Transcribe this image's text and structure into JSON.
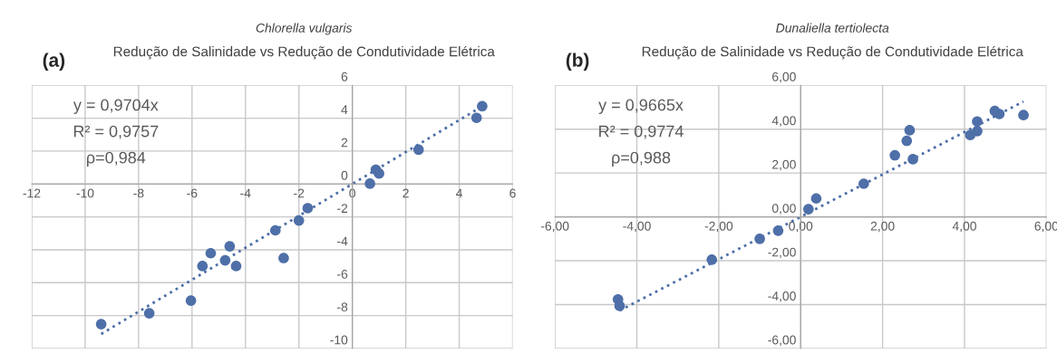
{
  "chart_data": [
    {
      "type": "scatter",
      "title": "Chlorella vulgaris",
      "subtitle": "Redução de Salinidade vs Redução de Condutividade Elétrica",
      "annotations": [
        "(a)",
        "y = 0,9704x",
        "R² = 0,9757",
        "ρ=0,984"
      ],
      "series": [
        {
          "color": "#4e6fa8",
          "marker": "circle",
          "x": [
            4.86,
            4.65,
            2.48,
            0.88,
            1.0,
            0.66,
            -1.67,
            -2.0,
            -2.88,
            -2.57,
            -4.59,
            -5.3,
            -4.76,
            -4.35,
            -5.61,
            -6.04,
            -7.6,
            -9.4
          ],
          "values": [
            4.73,
            4.02,
            2.09,
            0.87,
            0.64,
            0.02,
            -1.47,
            -2.22,
            -2.82,
            -4.5,
            -3.79,
            -4.21,
            -4.64,
            -4.99,
            -4.99,
            -7.09,
            -7.86,
            -8.52
          ]
        },
        {
          "type": "line",
          "color": "#4e6fa8",
          "line_style": "dotted",
          "marker": "none",
          "x": [
            -9.4,
            4.86
          ],
          "values": [
            -9.12,
            4.72
          ]
        }
      ],
      "xlim": [
        -12,
        6
      ],
      "ylim": [
        -10,
        6
      ],
      "xticks": [
        -12,
        -10,
        -8,
        -6,
        -4,
        -2,
        0,
        2,
        4,
        6
      ],
      "yticks": [
        -10,
        -8,
        -6,
        -4,
        -2,
        0,
        2,
        4,
        6
      ],
      "grid": true,
      "legend": false
    },
    {
      "type": "scatter",
      "title": "Dunaliella tertiolecta",
      "subtitle": "Redução de Salinidade vs Redução de Condutividade Elétrica",
      "annotations": [
        "(b)",
        "y = 0,9665x",
        "R² = 0,9774",
        "ρ=0,988"
      ],
      "series": [
        {
          "color": "#4e6fa8",
          "marker": "circle",
          "x": [
            5.44,
            4.85,
            4.74,
            4.31,
            4.31,
            4.14,
            2.66,
            2.59,
            2.3,
            2.74,
            1.54,
            0.38,
            0.19,
            -0.55,
            -1.0,
            -2.17,
            -4.46,
            -4.42
          ],
          "values": [
            4.64,
            4.69,
            4.83,
            4.35,
            3.91,
            3.73,
            3.95,
            3.47,
            2.81,
            2.63,
            1.51,
            0.84,
            0.35,
            -0.63,
            -1.0,
            -1.95,
            -3.76,
            -4.06
          ]
        },
        {
          "type": "line",
          "color": "#4e6fa8",
          "line_style": "dotted",
          "marker": "none",
          "x": [
            -4.42,
            5.44
          ],
          "values": [
            -4.27,
            5.26
          ]
        }
      ],
      "xlim": [
        -6,
        6
      ],
      "ylim": [
        -6,
        6
      ],
      "xticks": [
        {
          "value": -6,
          "label": "-6,00"
        },
        {
          "value": -4,
          "label": "-4,00"
        },
        {
          "value": -2,
          "label": "-2,00"
        },
        {
          "value": 0,
          "label": "0,00"
        },
        {
          "value": 2,
          "label": "2,00"
        },
        {
          "value": 4,
          "label": "4,00"
        },
        {
          "value": 6,
          "label": "6,00"
        }
      ],
      "yticks": [
        {
          "value": -6,
          "label": "-6,00"
        },
        {
          "value": -4,
          "label": "-4,00"
        },
        {
          "value": -2,
          "label": "-2,00"
        },
        {
          "value": 0,
          "label": "0,00"
        },
        {
          "value": 2,
          "label": "2,00"
        },
        {
          "value": 4,
          "label": "4,00"
        },
        {
          "value": 6,
          "label": "6,00"
        }
      ],
      "grid": true,
      "legend": false
    }
  ]
}
